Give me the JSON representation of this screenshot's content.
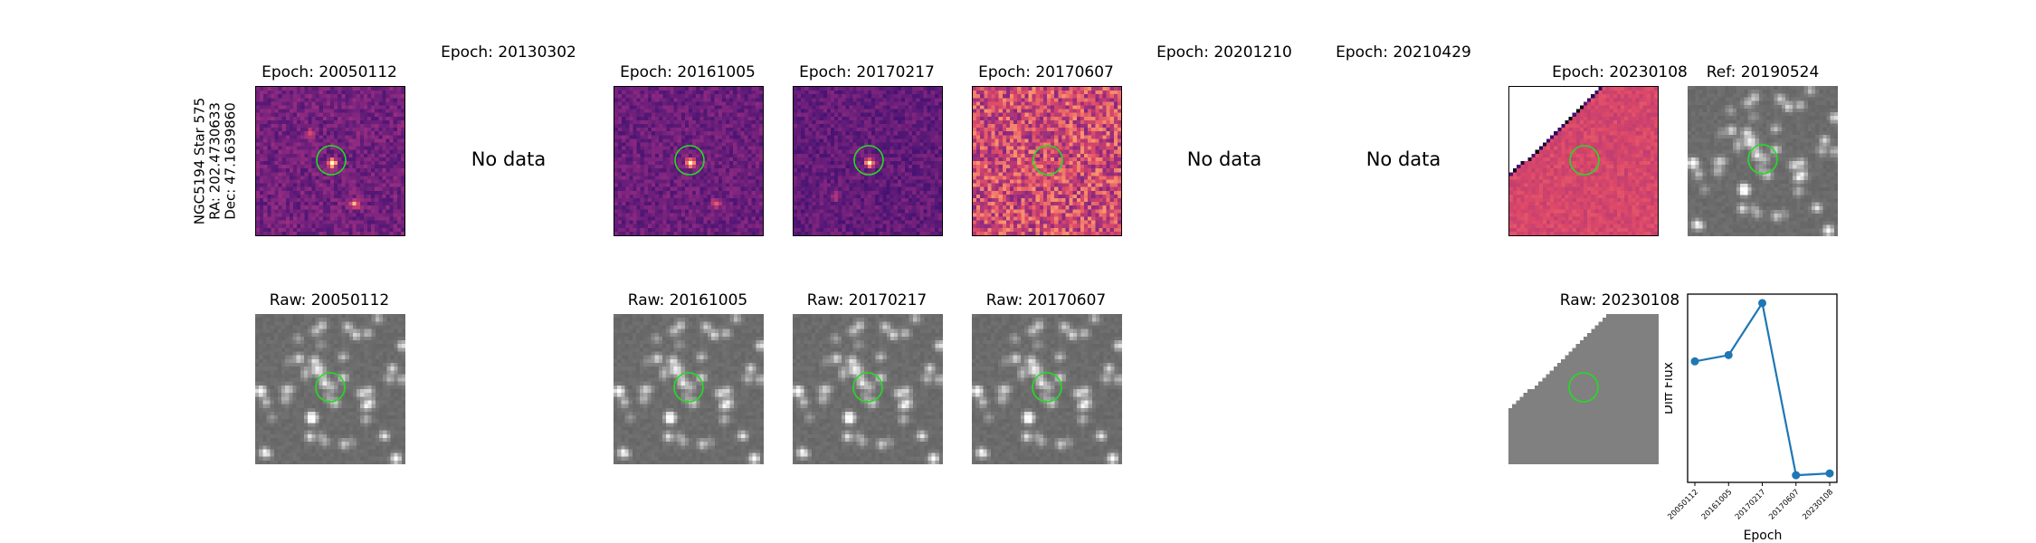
{
  "star_label": {
    "name": "NGC5194 Star 575",
    "ra": "RA: 202.4730633",
    "dec": "Dec: 47.1639860"
  },
  "top_row": [
    {
      "title": "Epoch: 20050112",
      "no_data": ""
    },
    {
      "title": "Epoch: 20130302",
      "no_data": "No data"
    },
    {
      "title": "Epoch: 20161005",
      "no_data": ""
    },
    {
      "title": "Epoch: 20170217",
      "no_data": ""
    },
    {
      "title": "Epoch: 20170607",
      "no_data": ""
    },
    {
      "title": "Epoch: 20201210",
      "no_data": "No data"
    },
    {
      "title": "Epoch: 20210429",
      "no_data": "No data"
    },
    {
      "title": "Epoch: 20230108",
      "no_data": ""
    },
    {
      "title": "Ref: 20190524",
      "no_data": ""
    }
  ],
  "bottom_row": [
    {
      "title": "Raw: 20050112"
    },
    {
      "title": "Raw: 20161005"
    },
    {
      "title": "Raw: 20170217"
    },
    {
      "title": "Raw: 20170607"
    },
    {
      "title": "Raw: 20230108"
    }
  ],
  "colors": {
    "circle": "#22dd22",
    "series": "#1f77b4"
  },
  "chart_data": {
    "type": "line",
    "categories": [
      "20050112",
      "20161005",
      "20170217",
      "20170607",
      "20230108"
    ],
    "values": [
      0.55,
      0.62,
      1.2,
      -0.72,
      -0.7
    ],
    "ylim": [
      -0.8,
      1.3
    ],
    "xlabel": "Epoch",
    "ylabel": "Diff Flux",
    "marker": "circle"
  }
}
